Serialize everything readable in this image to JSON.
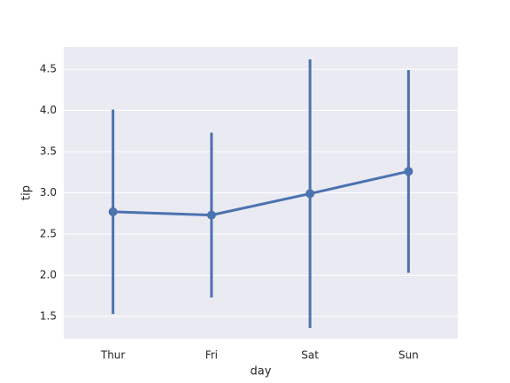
{
  "chart_data": {
    "type": "pointplot",
    "x_label": "day",
    "y_label": "tip",
    "categories": [
      "Thur",
      "Fri",
      "Sat",
      "Sun"
    ],
    "values": [
      2.77,
      2.73,
      2.99,
      3.26
    ],
    "errors": [
      1.24,
      1.0,
      1.63,
      1.23
    ],
    "color": "#4c72b0",
    "ylim": [
      1.23,
      4.77
    ],
    "yticks": [
      {
        "value": 1.5,
        "label": "1.5"
      },
      {
        "value": 2,
        "label": "2.0"
      },
      {
        "value": 2.5,
        "label": "2.5"
      },
      {
        "value": 3,
        "label": "3.0"
      },
      {
        "value": 3.5,
        "label": "3.5"
      },
      {
        "value": 4,
        "label": "4.0"
      },
      {
        "value": 4.5,
        "label": "4.5"
      }
    ],
    "grid": true
  }
}
